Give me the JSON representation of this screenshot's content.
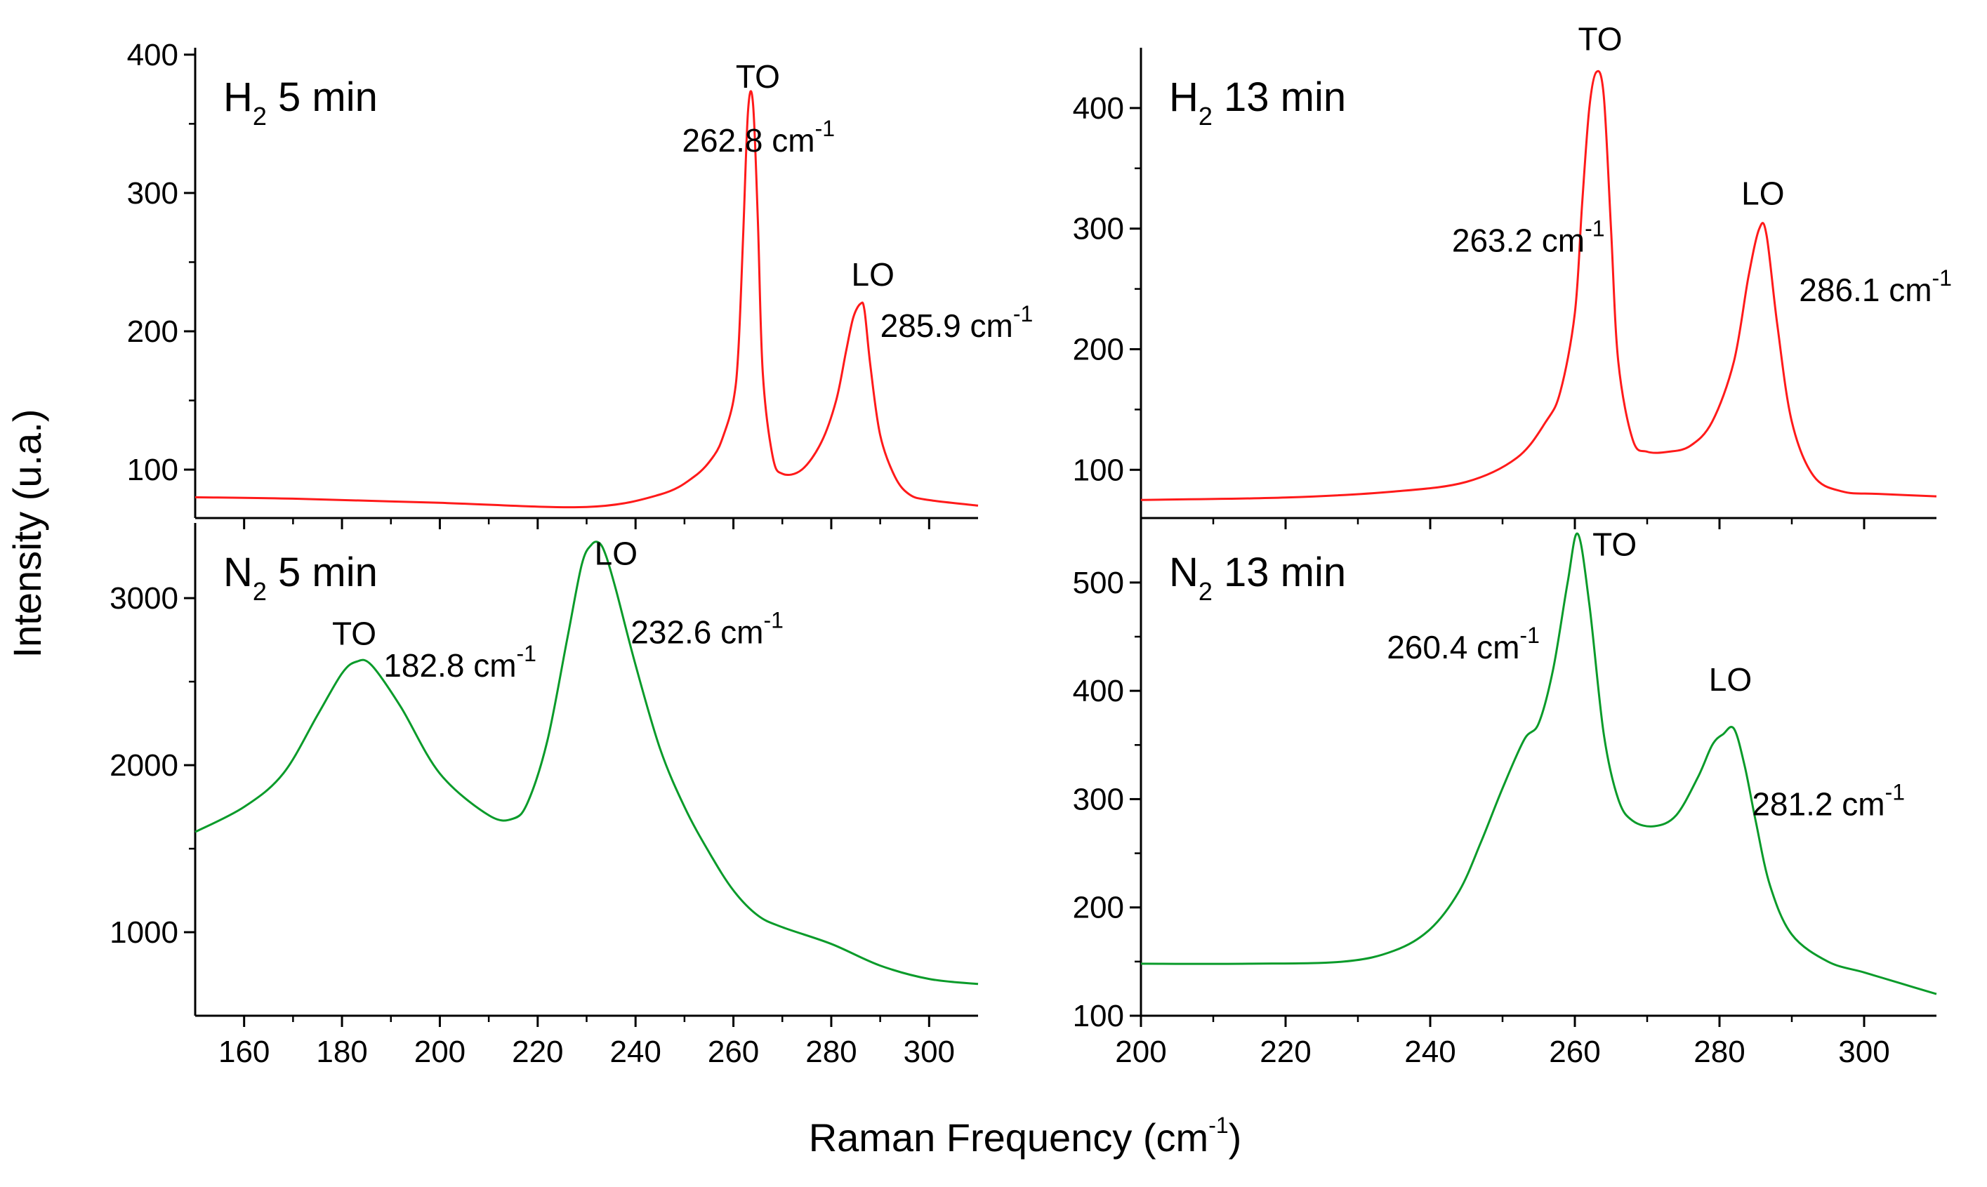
{
  "figure": {
    "ylabel": "Intensity (u.a.)",
    "xlabel_main": "Raman Frequency (cm",
    "xlabel_sup": "-1",
    "xlabel_end": ")"
  },
  "colors": {
    "h2": "#ff1a1a",
    "n2": "#0a9b2a",
    "axis": "#000000"
  },
  "chart_data": [
    {
      "id": "h2-5min",
      "type": "line",
      "title": {
        "gas": "H",
        "sub": "2",
        "rest": " 5 min"
      },
      "series_color": "#ff1a1a",
      "xlim": [
        150,
        310
      ],
      "ylim": [
        65,
        405
      ],
      "yticks": [
        100,
        200,
        300,
        400
      ],
      "yminor": [
        150,
        250,
        350
      ],
      "xticks": [
        160,
        180,
        200,
        220,
        240,
        260,
        280,
        300
      ],
      "show_xtick_labels": false,
      "x": [
        150,
        170,
        200,
        230,
        245,
        252,
        256,
        258,
        260,
        261,
        262,
        263,
        264,
        265,
        266,
        268,
        270,
        274,
        278,
        281,
        283,
        284.5,
        286,
        286.8,
        288,
        290,
        293,
        296,
        300,
        310
      ],
      "y": [
        80,
        79,
        76,
        73,
        82,
        95,
        110,
        125,
        150,
        185,
        270,
        360,
        365,
        280,
        170,
        110,
        97,
        100,
        120,
        150,
        185,
        210,
        220,
        215,
        175,
        125,
        95,
        82,
        78,
        74
      ],
      "annotations": [
        {
          "text": "TO",
          "x": 265,
          "y": 376
        },
        {
          "text": "262.8 cm",
          "sup": "-1",
          "x": 249.5,
          "y": 330
        },
        {
          "text": "LO",
          "x": 288.5,
          "y": 233
        },
        {
          "text": "285.9 cm",
          "sup": "-1",
          "x": 290,
          "y": 196
        }
      ]
    },
    {
      "id": "h2-13min",
      "type": "line",
      "title": {
        "gas": "H",
        "sub": "2",
        "rest": " 13 min"
      },
      "series_color": "#ff1a1a",
      "xlim": [
        200,
        310
      ],
      "ylim": [
        60,
        450
      ],
      "yticks": [
        100,
        200,
        300,
        400
      ],
      "yminor": [
        150,
        250,
        350
      ],
      "xticks": [
        200,
        220,
        240,
        260,
        280,
        300
      ],
      "show_xtick_labels": false,
      "x": [
        200,
        220,
        235,
        245,
        252,
        256,
        258,
        260,
        261,
        262,
        263,
        264,
        265,
        266,
        268,
        270,
        273,
        276,
        279,
        282,
        284,
        285.5,
        286.5,
        288,
        290,
        293,
        297,
        302,
        310
      ],
      "y": [
        75,
        77,
        82,
        90,
        110,
        140,
        165,
        230,
        320,
        400,
        430,
        410,
        300,
        190,
        125,
        115,
        115,
        120,
        140,
        190,
        260,
        300,
        295,
        220,
        140,
        95,
        82,
        80,
        78
      ],
      "annotations": [
        {
          "text": "TO",
          "x": 263.5,
          "y": 448
        },
        {
          "text": "263.2 cm",
          "sup": "-1",
          "x": 243,
          "y": 281
        },
        {
          "text": "LO",
          "x": 286,
          "y": 320
        },
        {
          "text": "286.1 cm",
          "sup": "-1",
          "x": 291,
          "y": 240
        },
        {
          "text": "",
          "x": 0,
          "y": 0
        }
      ]
    },
    {
      "id": "n2-5min",
      "type": "line",
      "title": {
        "gas": "N",
        "sub": "2",
        "rest": " 5 min"
      },
      "series_color": "#0a9b2a",
      "xlim": [
        150,
        310
      ],
      "ylim": [
        500,
        3450
      ],
      "yticks": [
        1000,
        2000,
        3000
      ],
      "yminor": [
        1500,
        2500
      ],
      "xticks": [
        160,
        180,
        200,
        220,
        240,
        260,
        280,
        300
      ],
      "show_xtick_labels": true,
      "x": [
        150,
        160,
        168,
        175,
        180,
        183,
        186,
        192,
        200,
        210,
        215,
        218,
        222,
        226,
        229,
        231,
        232.6,
        234,
        236,
        240,
        245,
        250,
        255,
        260,
        265,
        270,
        280,
        290,
        300,
        310
      ],
      "y": [
        1600,
        1750,
        1950,
        2300,
        2550,
        2620,
        2600,
        2350,
        1950,
        1700,
        1680,
        1780,
        2150,
        2750,
        3200,
        3320,
        3330,
        3250,
        3050,
        2600,
        2100,
        1750,
        1480,
        1250,
        1100,
        1030,
        930,
        800,
        720,
        690
      ],
      "annotations": [
        {
          "text": "TO",
          "x": 182.5,
          "y": 2720
        },
        {
          "text": "182.8 cm",
          "sup": "-1",
          "x": 188.5,
          "y": 2530
        },
        {
          "text": "LO",
          "x": 236,
          "y": 3200
        },
        {
          "text": "232.6 cm",
          "sup": "-1",
          "x": 239,
          "y": 2730
        }
      ]
    },
    {
      "id": "n2-13min",
      "type": "line",
      "title": {
        "gas": "N",
        "sub": "2",
        "rest": " 13 min"
      },
      "series_color": "#0a9b2a",
      "xlim": [
        200,
        310
      ],
      "ylim": [
        100,
        555
      ],
      "yticks": [
        100,
        200,
        300,
        400,
        500
      ],
      "yminor": [
        150,
        250,
        350,
        450
      ],
      "xticks": [
        200,
        220,
        240,
        260,
        280,
        300
      ],
      "show_xtick_labels": true,
      "x": [
        200,
        215,
        228,
        235,
        240,
        244,
        247,
        250,
        253,
        255,
        257,
        259,
        260.4,
        262,
        264,
        266,
        268,
        271,
        274,
        277,
        279,
        280.5,
        282,
        283.5,
        285,
        287,
        290,
        295,
        300,
        305,
        310
      ],
      "y": [
        148,
        148,
        150,
        160,
        180,
        215,
        260,
        310,
        355,
        370,
        420,
        500,
        545,
        480,
        360,
        300,
        280,
        275,
        285,
        320,
        350,
        360,
        365,
        330,
        280,
        220,
        175,
        150,
        140,
        130,
        120
      ],
      "annotations": [
        {
          "text": "TO",
          "x": 265.5,
          "y": 525
        },
        {
          "text": "260.4 cm",
          "sup": "-1",
          "x": 234,
          "y": 430
        },
        {
          "text": "LO",
          "x": 281.5,
          "y": 400
        },
        {
          "text": "281.2 cm",
          "sup": "-1",
          "x": 284.5,
          "y": 285
        }
      ]
    }
  ]
}
